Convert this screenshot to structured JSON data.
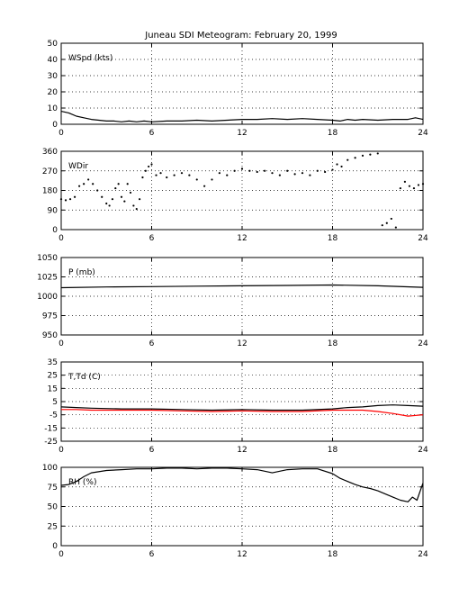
{
  "figure_title": "Juneau SDI Meteogram:  February 20, 1999",
  "chart_data": [
    {
      "type": "line",
      "panel_label": "WSpd (kts)",
      "xlim": [
        0,
        24
      ],
      "xticks": [
        0,
        6,
        12,
        18,
        24
      ],
      "ylim": [
        0,
        50
      ],
      "yticks": [
        0,
        10,
        20,
        30,
        40,
        50
      ],
      "grid": true,
      "series": [
        {
          "color": "#000000",
          "style": "line",
          "x": [
            0,
            0.5,
            1,
            1.5,
            2,
            2.5,
            3,
            3.5,
            4,
            4.5,
            5,
            5.5,
            6,
            7,
            8,
            9,
            10,
            11,
            12,
            13,
            14,
            15,
            16,
            17,
            18,
            18.5,
            19,
            19.5,
            20,
            21,
            22,
            23,
            23.5,
            24
          ],
          "y": [
            8,
            7,
            5,
            4,
            3,
            2.5,
            2,
            2,
            1.5,
            2,
            1.5,
            2,
            1.5,
            2,
            2,
            2.5,
            2,
            2.5,
            3,
            3,
            3.5,
            3,
            3.5,
            3,
            2.5,
            2,
            3,
            2.5,
            3,
            2.5,
            3,
            3,
            4,
            3
          ]
        }
      ]
    },
    {
      "type": "scatter",
      "panel_label": "WDir",
      "xlim": [
        0,
        24
      ],
      "xticks": [
        0,
        6,
        12,
        18,
        24
      ],
      "ylim": [
        0,
        360
      ],
      "yticks": [
        0,
        90,
        180,
        270,
        360
      ],
      "grid": true,
      "series": [
        {
          "color": "#000000",
          "style": "dots",
          "x": [
            0,
            0.3,
            0.6,
            0.9,
            1.2,
            1.5,
            1.8,
            2.1,
            2.4,
            2.7,
            3,
            3.2,
            3.4,
            3.6,
            3.8,
            4,
            4.2,
            4.4,
            4.6,
            4.8,
            5,
            5.2,
            5.4,
            5.6,
            5.8,
            6,
            6.3,
            6.6,
            7,
            7.5,
            8,
            8.5,
            9,
            9.5,
            10,
            10.5,
            11,
            11.5,
            12,
            12.5,
            13,
            13.5,
            14,
            14.5,
            15,
            15.5,
            16,
            16.5,
            17,
            17.5,
            18,
            18.3,
            18.6,
            19,
            19.5,
            20,
            20.5,
            21,
            21.3,
            21.6,
            21.9,
            22.2,
            22.5,
            22.8,
            23.1,
            23.4,
            23.7,
            24
          ],
          "y": [
            140,
            135,
            140,
            150,
            200,
            210,
            230,
            210,
            180,
            150,
            120,
            110,
            140,
            190,
            210,
            150,
            130,
            210,
            170,
            110,
            95,
            140,
            240,
            270,
            290,
            300,
            250,
            260,
            240,
            250,
            260,
            250,
            230,
            200,
            230,
            260,
            250,
            270,
            280,
            270,
            265,
            270,
            260,
            250,
            270,
            255,
            260,
            250,
            270,
            265,
            275,
            300,
            290,
            320,
            330,
            340,
            345,
            350,
            20,
            30,
            50,
            10,
            190,
            220,
            200,
            190,
            205,
            210
          ]
        }
      ]
    },
    {
      "type": "line",
      "panel_label": "P (mb)",
      "xlim": [
        0,
        24
      ],
      "xticks": [
        0,
        6,
        12,
        18,
        24
      ],
      "ylim": [
        950,
        1050
      ],
      "yticks": [
        950,
        975,
        1000,
        1025,
        1050
      ],
      "grid": true,
      "series": [
        {
          "color": "#000000",
          "style": "line",
          "x": [
            0,
            3,
            6,
            9,
            12,
            15,
            18,
            21,
            24
          ],
          "y": [
            1011,
            1012,
            1012.5,
            1013,
            1013.5,
            1014,
            1014.5,
            1013.5,
            1011.5
          ]
        }
      ]
    },
    {
      "type": "line",
      "panel_label": "T,Td (C)",
      "xlim": [
        0,
        24
      ],
      "xticks": [
        0,
        6,
        12,
        18,
        24
      ],
      "ylim": [
        -25,
        35
      ],
      "yticks": [
        -25,
        -15,
        -5,
        5,
        15,
        25,
        35
      ],
      "grid": true,
      "series": [
        {
          "color": "#000000",
          "style": "line",
          "x": [
            0,
            1,
            2,
            4,
            6,
            8,
            10,
            12,
            14,
            16,
            18,
            19,
            20,
            21,
            22,
            23,
            24
          ],
          "y": [
            1,
            0.5,
            0,
            -0.5,
            -0.5,
            -1,
            -1.5,
            -1,
            -1.5,
            -1.5,
            -0.5,
            0.5,
            1,
            2,
            2.5,
            2,
            1.5
          ]
        },
        {
          "color": "#ff0000",
          "style": "line",
          "x": [
            0,
            1,
            2,
            4,
            6,
            8,
            10,
            12,
            14,
            16,
            18,
            19,
            20,
            21,
            22,
            23,
            24
          ],
          "y": [
            -1,
            -1,
            -1.5,
            -1.5,
            -1.5,
            -2,
            -2.5,
            -2,
            -2.5,
            -2.5,
            -1.5,
            -1.5,
            -1.5,
            -2.5,
            -4,
            -6,
            -5
          ]
        }
      ]
    },
    {
      "type": "line",
      "panel_label": "RH (%)",
      "xlim": [
        0,
        24
      ],
      "xticks": [
        0,
        6,
        12,
        18,
        24
      ],
      "ylim": [
        0,
        100
      ],
      "yticks": [
        0,
        25,
        50,
        75,
        100
      ],
      "grid": true,
      "series": [
        {
          "color": "#000000",
          "style": "line",
          "x": [
            0,
            0.5,
            1,
            1.5,
            2,
            3,
            4,
            5,
            6,
            7,
            8,
            9,
            10,
            11,
            12,
            13,
            14,
            15,
            16,
            17,
            18,
            18.5,
            19,
            19.5,
            20,
            20.5,
            21,
            21.5,
            22,
            22.5,
            23,
            23.3,
            23.6,
            24
          ],
          "y": [
            77,
            78,
            82,
            88,
            93,
            96,
            97,
            98,
            98,
            99,
            99,
            98,
            99,
            99,
            98,
            97,
            93,
            97,
            98,
            98,
            92,
            86,
            82,
            78,
            75,
            73,
            70,
            66,
            62,
            58,
            56,
            62,
            58,
            80
          ]
        }
      ]
    }
  ]
}
